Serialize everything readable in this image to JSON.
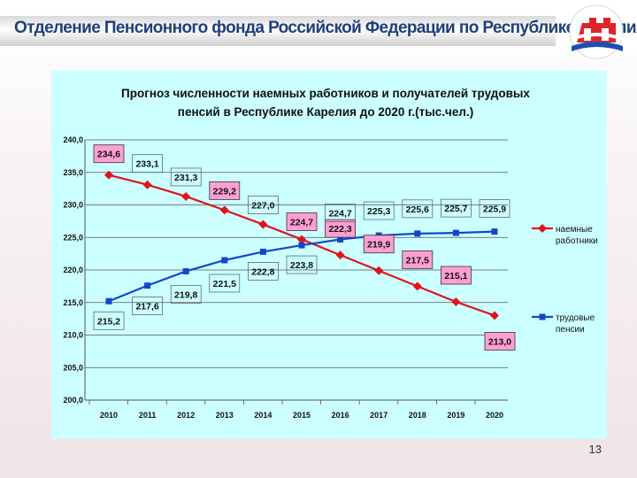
{
  "header": {
    "title": "Отделение Пенсионного фонда Российской Федерации по Республике Карелия",
    "logo_icon": "pfr-logo-icon"
  },
  "slide_number": "13",
  "colors": {
    "panel_bg": "#ccffff",
    "series1": "#e0141b",
    "series2": "#1447c8",
    "label_bg_pink": "#ff9fd2",
    "header_text": "#1f3f7a"
  },
  "chart_data": {
    "type": "line",
    "title": "Прогноз численности наемных работников и получателей трудовых пенсий в Республике Карелия до 2020 г.(тыс.чел.)",
    "title_lines": [
      "Прогноз численности наемных работников и получателей трудовых",
      "пенсий в Республике Карелия до 2020 г.(тыс.чел.)"
    ],
    "categories": [
      "2010",
      "2011",
      "2012",
      "2013",
      "2014",
      "2015",
      "2016",
      "2017",
      "2018",
      "2019",
      "2020"
    ],
    "series": [
      {
        "name": "наемные работники",
        "legend_lines": [
          "наемные",
          "работники"
        ],
        "color": "#e0141b",
        "marker": "diamond",
        "values": [
          234.6,
          233.1,
          231.3,
          229.2,
          227.0,
          224.7,
          222.3,
          219.9,
          217.5,
          215.1,
          213.0
        ],
        "labels": [
          "234,6",
          "233,1",
          "231,3",
          "229,2",
          "227,0",
          "224,7",
          "222,3",
          "219,9",
          "217,5",
          "215,1",
          "213,0"
        ],
        "label_highlight": [
          true,
          false,
          false,
          true,
          false,
          true,
          true,
          true,
          true,
          true,
          true
        ]
      },
      {
        "name": "трудовые пенсии",
        "legend_lines": [
          "трудовые",
          "пенсии"
        ],
        "color": "#1447c8",
        "marker": "square",
        "values": [
          215.2,
          217.6,
          219.8,
          221.5,
          222.8,
          223.8,
          224.7,
          225.3,
          225.6,
          225.7,
          225.9
        ],
        "labels": [
          "215,2",
          "217,6",
          "219,8",
          "221,5",
          "222,8",
          "223,8",
          "224,7",
          "225,3",
          "225,6",
          "225,7",
          "225,9"
        ]
      }
    ],
    "y_ticks": [
      "240,0",
      "235,0",
      "230,0",
      "225,0",
      "220,0",
      "215,0",
      "210,0",
      "205,0",
      "200,0"
    ],
    "ylim": [
      200,
      240
    ],
    "grid": true,
    "legend_position": "right"
  }
}
